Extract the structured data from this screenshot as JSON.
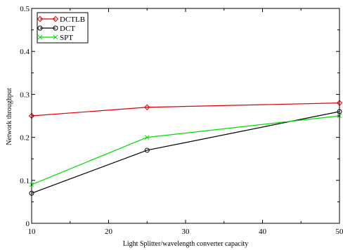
{
  "chart_data": {
    "type": "line",
    "xlabel": "Light Splitter/wavelength converter capacity",
    "ylabel": "Network throughput",
    "xlim": [
      10,
      50
    ],
    "ylim": [
      0,
      0.5
    ],
    "xticks": [
      10,
      20,
      30,
      40,
      50
    ],
    "yticks": [
      0,
      0.1,
      0.2,
      0.3,
      0.4,
      0.5
    ],
    "xtick_labels": [
      "10",
      "20",
      "30",
      "40",
      "50"
    ],
    "ytick_labels": [
      "0",
      "0.1",
      "0.2",
      "0.3",
      "0.4",
      "0.5"
    ],
    "grid": false,
    "legend_position": "top-left",
    "series": [
      {
        "name": "DCTLB",
        "x": [
          10,
          25,
          50
        ],
        "values": [
          0.25,
          0.27,
          0.28
        ],
        "color": "#e00000",
        "marker": "diamond"
      },
      {
        "name": "DCT",
        "x": [
          10,
          25,
          50
        ],
        "values": [
          0.07,
          0.17,
          0.26
        ],
        "color": "#000000",
        "marker": "circle"
      },
      {
        "name": "SPT",
        "x": [
          10,
          25,
          50
        ],
        "values": [
          0.09,
          0.2,
          0.25
        ],
        "color": "#00dd00",
        "marker": "x"
      }
    ]
  }
}
